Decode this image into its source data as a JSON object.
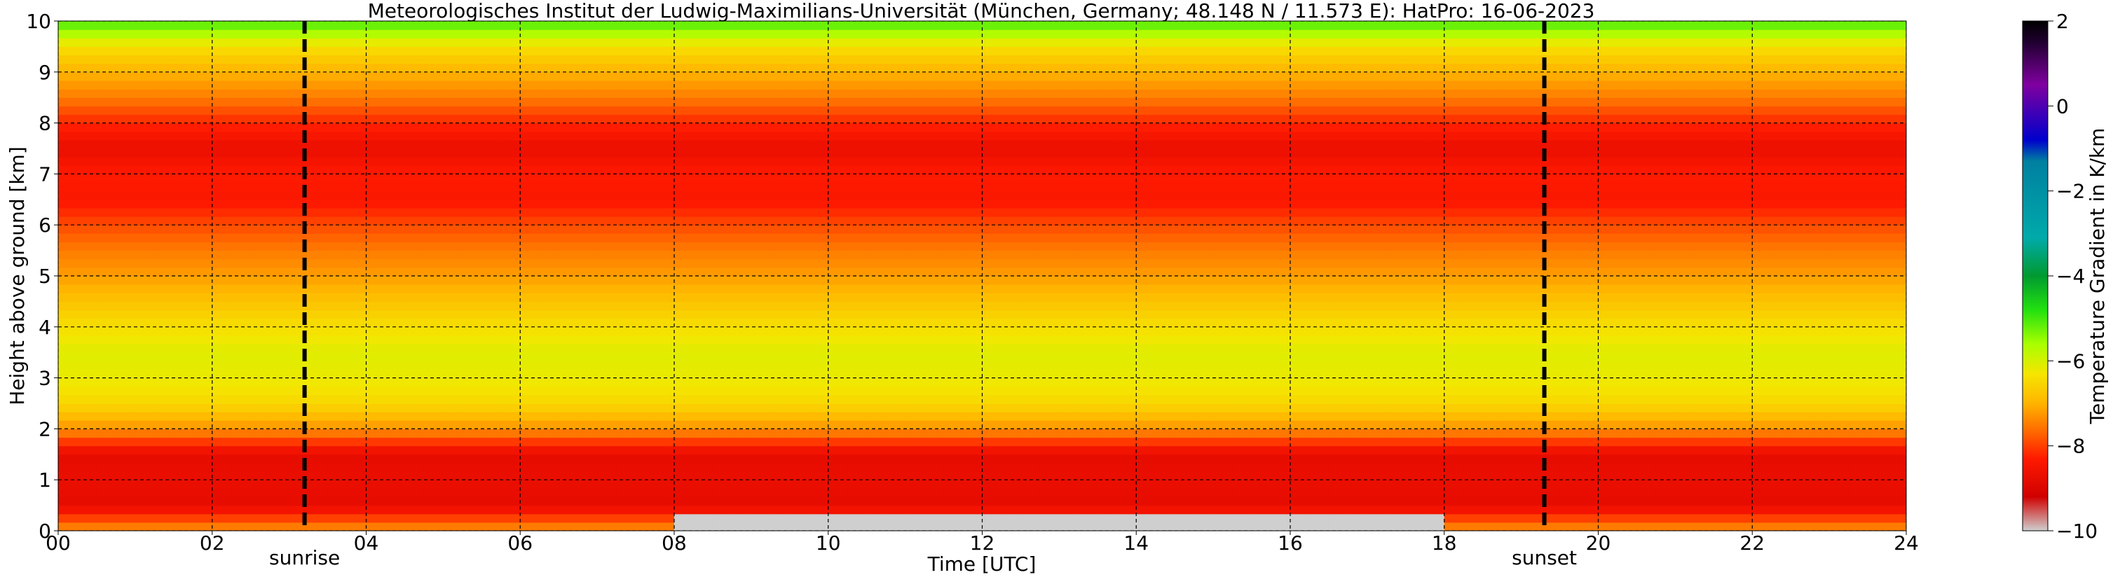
{
  "chart_data": {
    "type": "heatmap",
    "title": "Meteorologisches Institut der Ludwig-Maximilians-Universität (München, Germany; 48.148 N / 11.573 E):    HatPro: 16-06-2023",
    "xlabel": "Time [UTC]",
    "ylabel": "Height above ground [km]",
    "xlim": [
      0,
      24
    ],
    "ylim": [
      0,
      10
    ],
    "x_ticks": [
      "00",
      "02",
      "04",
      "06",
      "08",
      "10",
      "12",
      "14",
      "16",
      "18",
      "20",
      "22",
      "24"
    ],
    "y_ticks": [
      "0",
      "1",
      "2",
      "3",
      "4",
      "5",
      "6",
      "7",
      "8",
      "9",
      "10"
    ],
    "grid": true,
    "colorbar": {
      "label": "Temperature Gradient in K/km",
      "range": [
        -10,
        2
      ],
      "ticks": [
        "−10",
        "−8",
        "−6",
        "−4",
        "−2",
        "0",
        "2"
      ],
      "color_stops": [
        {
          "value": -10,
          "color": "#cfcfcf"
        },
        {
          "value": -9.2,
          "color": "#d00000"
        },
        {
          "value": -8.3,
          "color": "#ff1a00"
        },
        {
          "value": -7.6,
          "color": "#ff7000"
        },
        {
          "value": -7.0,
          "color": "#ffb400"
        },
        {
          "value": -6.3,
          "color": "#f5e600"
        },
        {
          "value": -5.6,
          "color": "#a8ff00"
        },
        {
          "value": -4.8,
          "color": "#22e010"
        },
        {
          "value": -4.0,
          "color": "#009a30"
        },
        {
          "value": -3.1,
          "color": "#00aaaa"
        },
        {
          "value": -1.3,
          "color": "#0080a0"
        },
        {
          "value": -0.8,
          "color": "#0000cc"
        },
        {
          "value": 0.5,
          "color": "#8000a0"
        },
        {
          "value": 1.5,
          "color": "#200030"
        },
        {
          "value": 2,
          "color": "#000000"
        }
      ]
    },
    "markers": [
      {
        "label": "sunrise",
        "time": 3.2
      },
      {
        "label": "sunset",
        "time": 19.3
      }
    ],
    "profile": {
      "heights_km": [
        0.1,
        0.5,
        1.0,
        1.5,
        2.0,
        2.5,
        3.0,
        3.5,
        4.0,
        4.5,
        5.0,
        5.5,
        6.0,
        6.5,
        7.0,
        7.5,
        8.0,
        8.5,
        9.0,
        9.5,
        10.0
      ],
      "gradient_K_per_km": [
        -7.5,
        -8.8,
        -8.7,
        -8.8,
        -7.3,
        -6.5,
        -6.2,
        -6.1,
        -6.4,
        -6.8,
        -7.2,
        -7.5,
        -7.9,
        -8.4,
        -8.3,
        -8.7,
        -8.2,
        -7.5,
        -7.0,
        -6.4,
        -5.0
      ]
    },
    "daytime_surface_layer": {
      "time_range": [
        8.0,
        18.0
      ],
      "gradient_K_per_km": -10,
      "height_km": [
        0,
        0.4
      ]
    }
  }
}
